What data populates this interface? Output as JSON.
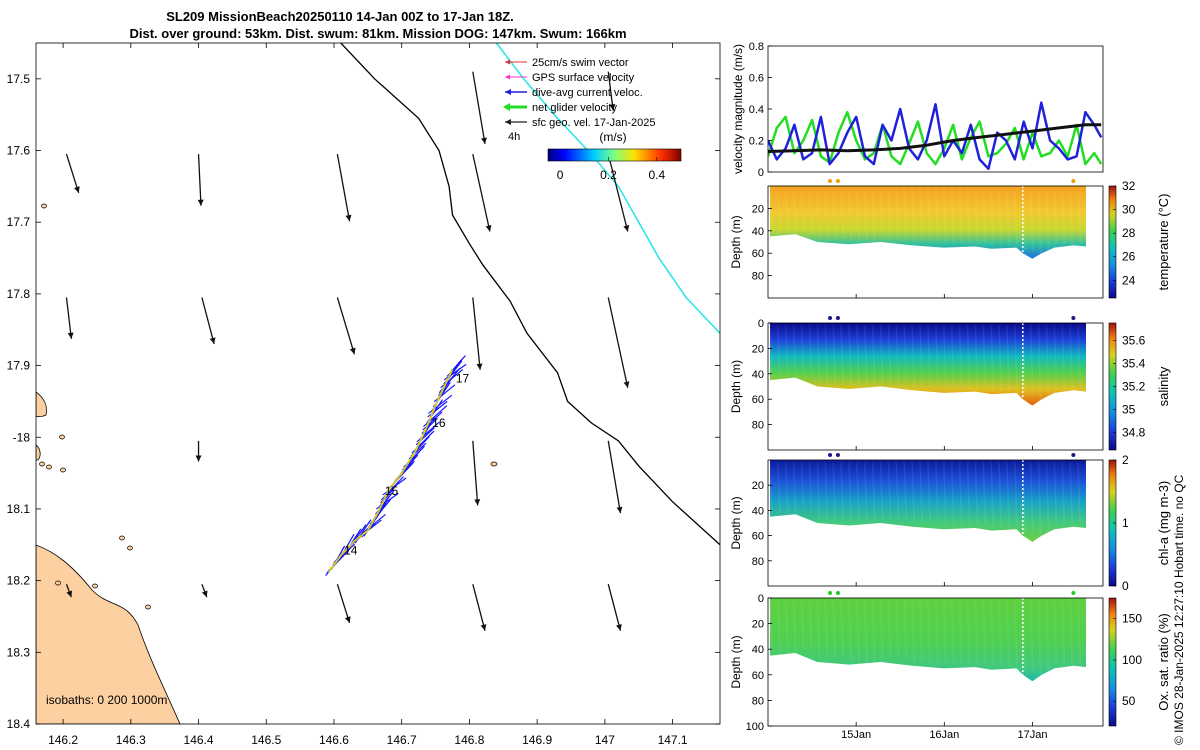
{
  "figure": {
    "title_line1": "SL209 MissionBeach20250110 14-Jan 00Z to 17-Jan 18Z.",
    "title_line2": "Dist. over ground: 53km. Dist. swum: 81km. Mission DOG: 147km. Swum: 166km",
    "footer": "© IMOS 28-Jan-2025 12:27:10 Hobart time. no QC"
  },
  "colors": {
    "land": "#fcd0a1",
    "isobath": "#000000",
    "cyan_line": "#2ee6e6",
    "track_blue": "#1414ff",
    "track_yellow": "#f5c800",
    "green_series": "#22dd22",
    "blue_series": "#2020dd",
    "black_series": "#111111"
  },
  "chart_data": [
    {
      "type": "map",
      "xlabel_ticks": [
        "146.2",
        "146.3",
        "146.4",
        "146.5",
        "146.6",
        "146.7",
        "146.8",
        "146.9",
        "147",
        "147.1"
      ],
      "x_ticks": [
        146.2,
        146.3,
        146.4,
        146.5,
        146.6,
        146.7,
        146.8,
        146.9,
        147.0,
        147.1
      ],
      "xlim": [
        146.16,
        147.17
      ],
      "ylabel_ticks": [
        "17.5",
        "17.6",
        "17.7",
        "17.8",
        "17.9",
        "-18",
        "18.1",
        "18.2",
        "18.3",
        "18.4"
      ],
      "y_ticks": [
        -17.5,
        -17.6,
        -17.7,
        -17.8,
        -17.9,
        -18.0,
        -18.1,
        -18.2,
        -18.3,
        -18.4
      ],
      "ylim": [
        -18.4,
        -17.45
      ],
      "legend": {
        "items": [
          {
            "label": "25cm/s swim vector",
            "color": "#e03030"
          },
          {
            "label": "GPS surface velocity",
            "color": "#ff33cc"
          },
          {
            "label": "dive-avg current veloc.",
            "color": "#1f1fdd"
          },
          {
            "label": "net glider velocity",
            "color": "#22dd22"
          },
          {
            "label": "sfc geo. vel. 17-Jan-2025",
            "color": "#222222"
          }
        ],
        "scale_label": "4h",
        "colorbar_title": "(m/s)",
        "colorbar_ticks": [
          "0",
          "0.2",
          "0.4"
        ],
        "colorbar_values": [
          0,
          0.2,
          0.4
        ],
        "colorbar_range": [
          -0.05,
          0.5
        ]
      },
      "isobath_label": "isobaths: 0   200  1000m",
      "track_labels": [
        {
          "text": "14",
          "lon": 146.615,
          "lat": -18.158
        },
        {
          "text": "15",
          "lon": 146.675,
          "lat": -18.075
        },
        {
          "text": "16",
          "lon": 146.745,
          "lat": -17.98
        },
        {
          "text": "17",
          "lon": 146.78,
          "lat": -17.918
        }
      ],
      "track": [
        [
          146.592,
          -18.188
        ],
        [
          146.61,
          -18.165
        ],
        [
          146.63,
          -18.145
        ],
        [
          146.65,
          -18.13
        ],
        [
          146.665,
          -18.105
        ],
        [
          146.68,
          -18.075
        ],
        [
          146.7,
          -18.05
        ],
        [
          146.72,
          -18.02
        ],
        [
          146.735,
          -17.99
        ],
        [
          146.75,
          -17.955
        ],
        [
          146.765,
          -17.925
        ],
        [
          146.775,
          -17.905
        ]
      ],
      "isobath_line": [
        [
          146.61,
          -17.45
        ],
        [
          146.66,
          -17.5
        ],
        [
          146.725,
          -17.555
        ],
        [
          146.755,
          -17.6
        ],
        [
          146.77,
          -17.65
        ],
        [
          146.775,
          -17.69
        ],
        [
          146.8,
          -17.73
        ],
        [
          146.82,
          -17.76
        ],
        [
          146.86,
          -17.81
        ],
        [
          146.885,
          -17.855
        ],
        [
          146.93,
          -17.91
        ],
        [
          146.945,
          -17.95
        ],
        [
          146.98,
          -17.98
        ],
        [
          147.02,
          -18.005
        ],
        [
          147.05,
          -18.04
        ],
        [
          147.1,
          -18.09
        ],
        [
          147.17,
          -18.15
        ]
      ],
      "cyan_line": [
        [
          146.84,
          -17.45
        ],
        [
          146.88,
          -17.5
        ],
        [
          146.93,
          -17.555
        ],
        [
          146.98,
          -17.605
        ],
        [
          147.02,
          -17.65
        ],
        [
          147.05,
          -17.7
        ],
        [
          147.08,
          -17.75
        ],
        [
          147.12,
          -17.805
        ],
        [
          147.17,
          -17.855
        ]
      ],
      "geo_vectors": [
        {
          "lon": 146.205,
          "lat": -17.605,
          "u": 0.05,
          "v": -0.15
        },
        {
          "lon": 146.4,
          "lat": -17.605,
          "u": 0.01,
          "v": -0.2
        },
        {
          "lon": 146.605,
          "lat": -17.605,
          "u": 0.05,
          "v": -0.26
        },
        {
          "lon": 146.805,
          "lat": -17.605,
          "u": 0.07,
          "v": -0.3
        },
        {
          "lon": 147.005,
          "lat": -17.605,
          "u": 0.08,
          "v": -0.3
        },
        {
          "lon": 146.805,
          "lat": -17.49,
          "u": 0.05,
          "v": -0.28
        },
        {
          "lon": 147.005,
          "lat": -17.49,
          "u": 0.02,
          "v": -0.15
        },
        {
          "lon": 146.205,
          "lat": -17.805,
          "u": 0.02,
          "v": -0.16
        },
        {
          "lon": 146.405,
          "lat": -17.805,
          "u": 0.05,
          "v": -0.18
        },
        {
          "lon": 146.605,
          "lat": -17.805,
          "u": 0.07,
          "v": -0.22
        },
        {
          "lon": 146.805,
          "lat": -17.805,
          "u": 0.03,
          "v": -0.28
        },
        {
          "lon": 147.005,
          "lat": -17.805,
          "u": 0.08,
          "v": -0.35
        },
        {
          "lon": 146.4,
          "lat": -18.005,
          "u": 0.0,
          "v": -0.08
        },
        {
          "lon": 146.805,
          "lat": -18.005,
          "u": 0.02,
          "v": -0.25
        },
        {
          "lon": 147.005,
          "lat": -18.005,
          "u": 0.05,
          "v": -0.28
        },
        {
          "lon": 146.205,
          "lat": -18.205,
          "u": 0.02,
          "v": -0.05
        },
        {
          "lon": 146.405,
          "lat": -18.205,
          "u": 0.02,
          "v": -0.05
        },
        {
          "lon": 146.605,
          "lat": -18.205,
          "u": 0.05,
          "v": -0.15
        },
        {
          "lon": 146.805,
          "lat": -18.205,
          "u": 0.05,
          "v": -0.18
        },
        {
          "lon": 147.005,
          "lat": -18.205,
          "u": 0.05,
          "v": -0.18
        }
      ]
    },
    {
      "type": "line",
      "ylabel": "velocity magnitude (m/s)",
      "ylim": [
        0,
        0.8
      ],
      "y_ticks": [
        0,
        0.2,
        0.4,
        0.6,
        0.8
      ],
      "y_tick_labels": [
        "0",
        "0.2",
        "0.4",
        "0.6",
        "0.8"
      ],
      "xlim": [
        14.0,
        17.8
      ],
      "series": [
        {
          "name": "green",
          "color": "#22dd22",
          "x": [
            14.0,
            14.1,
            14.2,
            14.3,
            14.4,
            14.5,
            14.6,
            14.7,
            14.8,
            14.9,
            15.0,
            15.1,
            15.2,
            15.3,
            15.4,
            15.5,
            15.6,
            15.7,
            15.8,
            15.9,
            16.0,
            16.1,
            16.2,
            16.3,
            16.4,
            16.5,
            16.6,
            16.7,
            16.8,
            16.9,
            17.0,
            17.1,
            17.2,
            17.3,
            17.4,
            17.5,
            17.6,
            17.7,
            17.78
          ],
          "y": [
            0.1,
            0.28,
            0.35,
            0.12,
            0.2,
            0.33,
            0.1,
            0.06,
            0.25,
            0.38,
            0.2,
            0.08,
            0.12,
            0.3,
            0.1,
            0.05,
            0.18,
            0.32,
            0.12,
            0.05,
            0.15,
            0.3,
            0.08,
            0.22,
            0.32,
            0.1,
            0.12,
            0.18,
            0.28,
            0.08,
            0.25,
            0.1,
            0.12,
            0.2,
            0.1,
            0.3,
            0.05,
            0.12,
            0.05
          ]
        },
        {
          "name": "blue",
          "color": "#2020dd",
          "x": [
            14.0,
            14.1,
            14.2,
            14.3,
            14.4,
            14.5,
            14.6,
            14.7,
            14.8,
            14.9,
            15.0,
            15.1,
            15.2,
            15.3,
            15.4,
            15.5,
            15.6,
            15.7,
            15.8,
            15.9,
            16.0,
            16.1,
            16.2,
            16.3,
            16.4,
            16.5,
            16.6,
            16.7,
            16.8,
            16.9,
            17.0,
            17.1,
            17.2,
            17.3,
            17.4,
            17.5,
            17.6,
            17.7,
            17.78
          ],
          "y": [
            0.2,
            0.08,
            0.15,
            0.3,
            0.08,
            0.12,
            0.35,
            0.05,
            0.12,
            0.25,
            0.35,
            0.1,
            0.05,
            0.3,
            0.2,
            0.4,
            0.15,
            0.08,
            0.2,
            0.43,
            0.1,
            0.2,
            0.12,
            0.3,
            0.08,
            0.02,
            0.25,
            0.2,
            0.08,
            0.32,
            0.15,
            0.44,
            0.2,
            0.15,
            0.08,
            0.1,
            0.38,
            0.3,
            0.22
          ]
        },
        {
          "name": "black",
          "color": "#111111",
          "x": [
            14.0,
            14.3,
            14.6,
            14.9,
            15.2,
            15.5,
            15.8,
            16.1,
            16.4,
            16.7,
            17.0,
            17.3,
            17.6,
            17.78
          ],
          "y": [
            0.13,
            0.135,
            0.14,
            0.135,
            0.14,
            0.15,
            0.17,
            0.2,
            0.22,
            0.24,
            0.26,
            0.28,
            0.3,
            0.3
          ]
        }
      ]
    },
    {
      "type": "heatmap",
      "ylabel": "Depth (m)",
      "colorbar_label": "temperature (°C)",
      "colorbar_range": [
        22.5,
        32
      ],
      "colorbar_ticks": [
        24,
        26,
        28,
        30,
        32
      ],
      "colorbar_tick_labels": [
        "24",
        "26",
        "28",
        "30",
        "32"
      ],
      "colormap": "parula",
      "dot_color": "#f0a000",
      "ylim": [
        100,
        0
      ],
      "y_ticks": [
        20,
        40,
        60,
        80
      ],
      "y_tick_labels": [
        "20",
        "40",
        "60",
        "80"
      ]
    },
    {
      "type": "heatmap",
      "ylabel": "Depth (m)",
      "colorbar_label": "salinity",
      "colorbar_range": [
        34.65,
        35.75
      ],
      "colorbar_ticks": [
        34.8,
        35,
        35.2,
        35.4,
        35.6
      ],
      "colorbar_tick_labels": [
        "34.8",
        "35",
        "35.2",
        "35.4",
        "35.6"
      ],
      "colormap": "parula",
      "dot_color": "#1a1a8a",
      "ylim": [
        100,
        0
      ],
      "y_ticks": [
        0,
        20,
        40,
        60,
        80
      ],
      "y_tick_labels": [
        "0",
        "20",
        "40",
        "60",
        "80"
      ]
    },
    {
      "type": "heatmap",
      "ylabel": "Depth (m)",
      "colorbar_label": "chl-a (mg m-3)",
      "colorbar_range": [
        0,
        2
      ],
      "colorbar_ticks": [
        0,
        1,
        2
      ],
      "colorbar_tick_labels": [
        "0",
        "1",
        "2"
      ],
      "colormap": "parula",
      "dot_color": "#1a1a8a",
      "ylim": [
        100,
        0
      ],
      "y_ticks": [
        20,
        40,
        60,
        80
      ],
      "y_tick_labels": [
        "20",
        "40",
        "60",
        "80"
      ]
    },
    {
      "type": "heatmap",
      "ylabel": "Depth (m)",
      "colorbar_label": "Ox. sat. ratio (%)",
      "colorbar_range": [
        20,
        175
      ],
      "colorbar_ticks": [
        50,
        100,
        150
      ],
      "colorbar_tick_labels": [
        "50",
        "100",
        "150"
      ],
      "colormap": "parula",
      "dot_color": "#22cc22",
      "ylim": [
        100,
        0
      ],
      "y_ticks": [
        0,
        20,
        40,
        60,
        80,
        100
      ],
      "y_tick_labels": [
        "0",
        "20",
        "40",
        "60",
        "80",
        "100"
      ],
      "x_ticks": [
        15.0,
        16.0,
        17.0
      ],
      "x_tick_labels": [
        "15Jan",
        "16Jan",
        "17Jan"
      ]
    }
  ]
}
